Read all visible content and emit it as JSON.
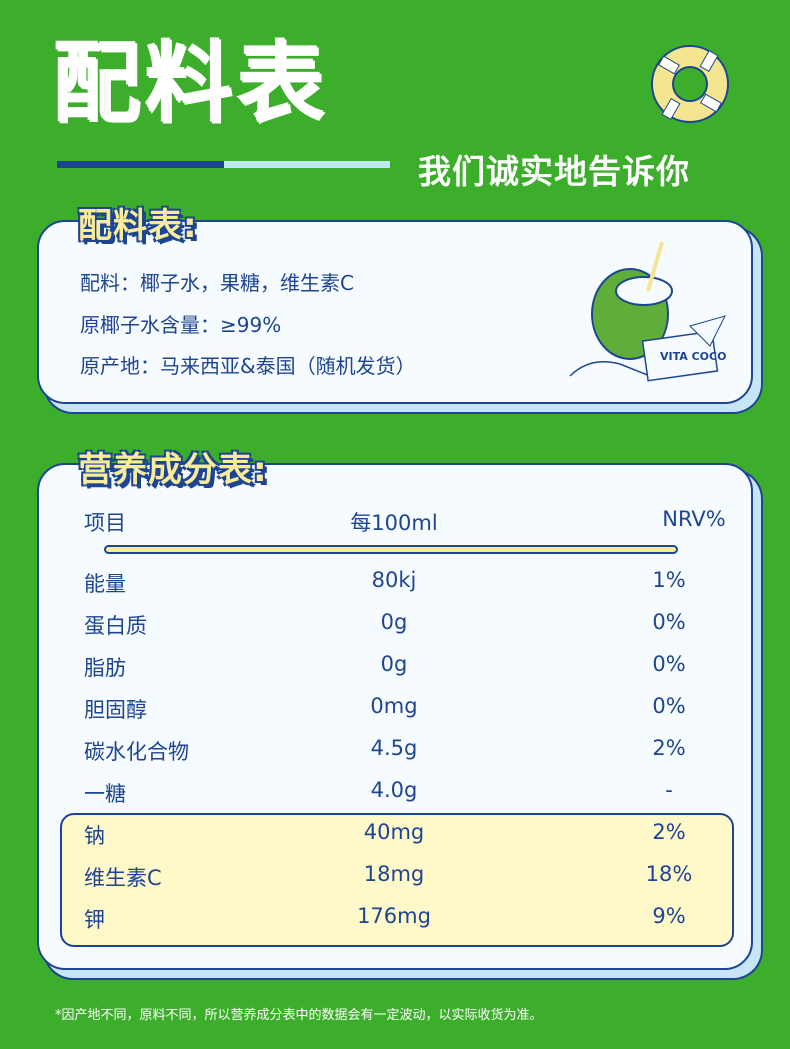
{
  "header": {
    "title": "配料表",
    "subtitle": "我们诚实地告诉你"
  },
  "ingredients": {
    "label": "配料表:",
    "lines": [
      "配料：椰子水，果糖，维生素C",
      "原椰子水含量：≥99%",
      "原产地：马来西亚&泰国（随机发货）"
    ],
    "brand": "VITA COCO"
  },
  "nutrition": {
    "label": "营养成分表:",
    "headers": [
      "项目",
      "每100ml",
      "NRV%"
    ],
    "rows": [
      [
        "能量",
        "80kj",
        "1%"
      ],
      [
        "蛋白质",
        "0g",
        "0%"
      ],
      [
        "脂肪",
        "0g",
        "0%"
      ],
      [
        "胆固醇",
        "0mg",
        "0%"
      ],
      [
        "碳水化合物",
        "4.5g",
        "2%"
      ],
      [
        "一糖",
        "4.0g",
        "-"
      ],
      [
        "钠",
        "40mg",
        "2%"
      ],
      [
        "维生素C",
        "18mg",
        "18%"
      ],
      [
        "钾",
        "176mg",
        "9%"
      ]
    ]
  },
  "footnote": "*因产地不同，原料不同，所以营养成分表中的数据会有一定波动，以实际收货为准。",
  "colors": {
    "background": "#3dae2b",
    "primary": "#1d4591",
    "highlight": "#fff8c8",
    "accent": "#f8ec9a"
  }
}
